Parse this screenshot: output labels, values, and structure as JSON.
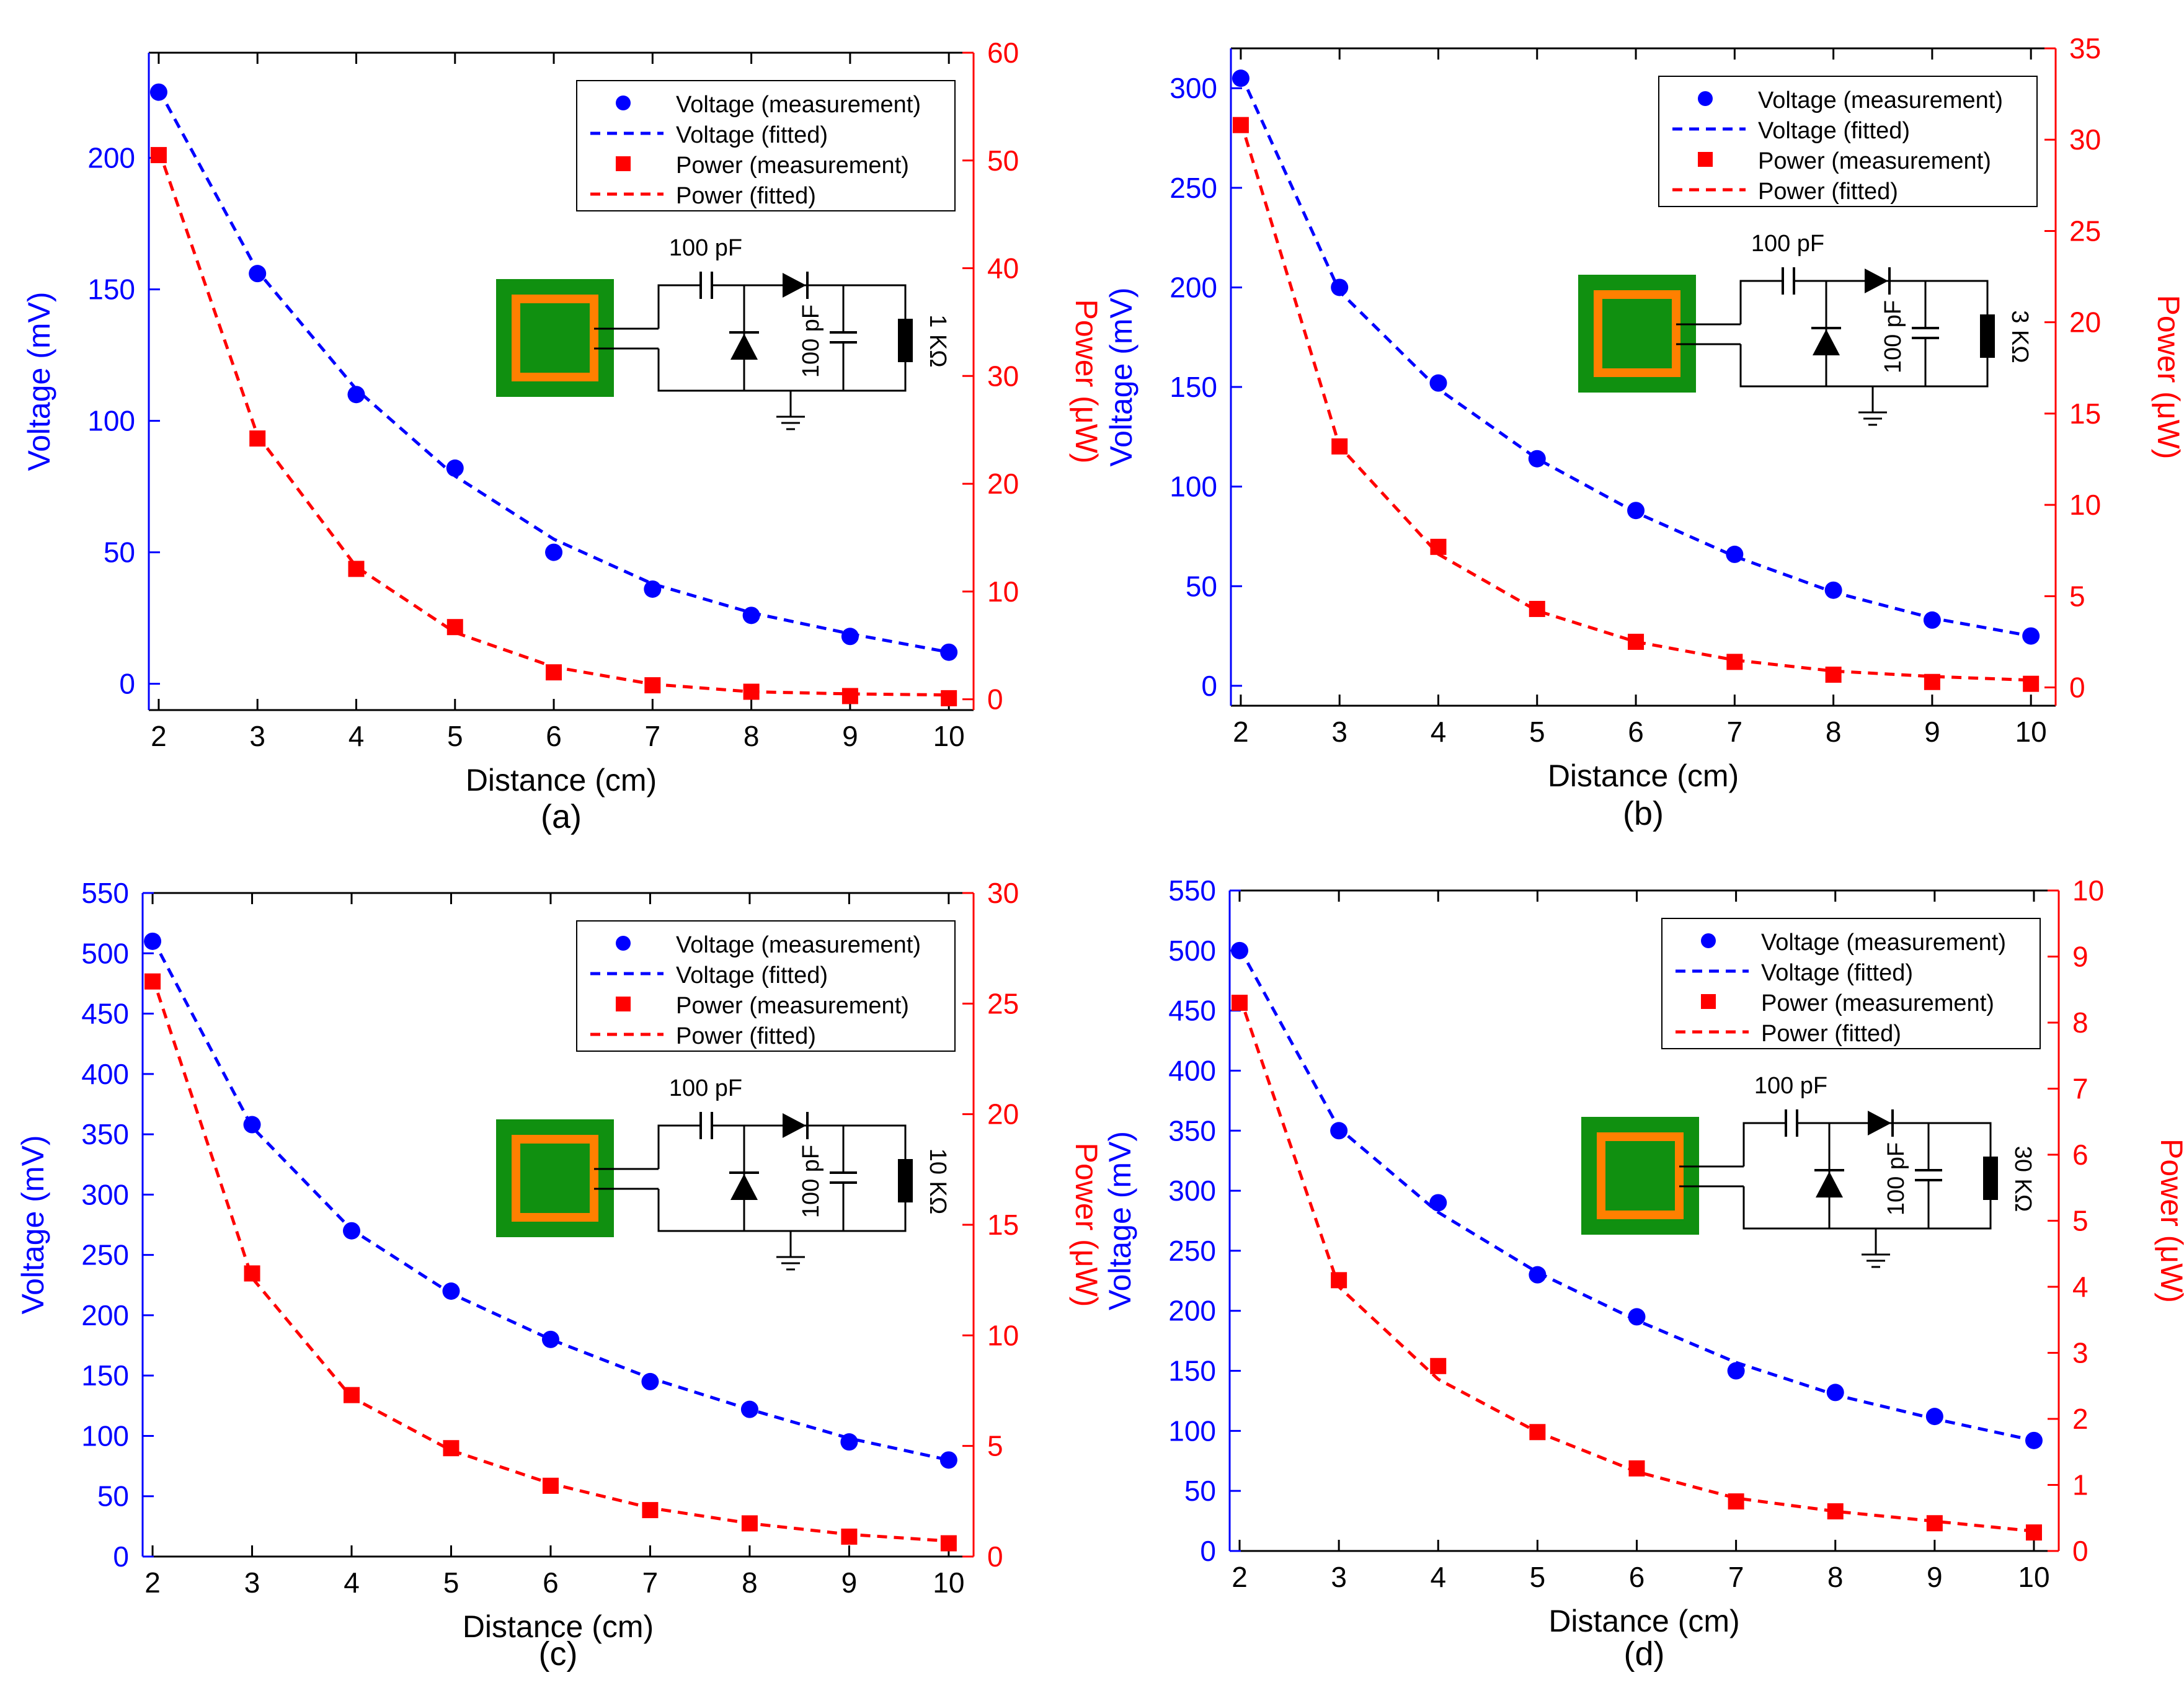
{
  "chart_data": [
    {
      "type": "line",
      "panel_label": "(a)",
      "xlabel": "Distance (cm)",
      "ylabel_left": "Voltage (mV)",
      "ylabel_right": "Power (μW)",
      "x": [
        2,
        3,
        4,
        5,
        6,
        7,
        8,
        9,
        10
      ],
      "xlim": [
        1.9,
        10.25
      ],
      "ylim_left": [
        -10,
        240
      ],
      "yticks_left": [
        0,
        50,
        100,
        150,
        200
      ],
      "ylim_right": [
        -1,
        60
      ],
      "yticks_right": [
        0,
        10,
        20,
        30,
        40,
        50,
        60
      ],
      "series": [
        {
          "name": "Voltage (measurement)",
          "kind": "scatter",
          "axis": "left",
          "color": "#0000ff",
          "values": [
            225,
            156,
            110,
            82,
            50,
            36,
            26,
            18,
            12
          ]
        },
        {
          "name": "Voltage (fitted)",
          "kind": "dashed",
          "axis": "left",
          "color": "#0000ff",
          "values": [
            226,
            157,
            112,
            79,
            55,
            38,
            27,
            19,
            12
          ]
        },
        {
          "name": "Power (measurement)",
          "kind": "scatter",
          "axis": "right",
          "color": "#ff0000",
          "values": [
            50.5,
            24.2,
            12.1,
            6.7,
            2.5,
            1.3,
            0.7,
            0.3,
            0.1
          ]
        },
        {
          "name": "Power (fitted)",
          "kind": "dashed",
          "axis": "right",
          "color": "#ff0000",
          "values": [
            51,
            24.5,
            12.3,
            6.2,
            3.0,
            1.4,
            0.7,
            0.5,
            0.4
          ]
        }
      ],
      "legend": [
        "Voltage (measurement)",
        "Voltage (fitted)",
        "Power (measurement)",
        "Power (fitted)"
      ],
      "circuit": {
        "capacitor_label": "100 pF",
        "shunt_capacitor_label": "100 pF",
        "resistor_label": "1 KΩ"
      }
    },
    {
      "type": "line",
      "panel_label": "(b)",
      "xlabel": "Distance (cm)",
      "ylabel_left": "Voltage (mV)",
      "ylabel_right": "Power (μW)",
      "x": [
        2,
        3,
        4,
        5,
        6,
        7,
        8,
        9,
        10
      ],
      "xlim": [
        1.9,
        10.25
      ],
      "ylim_left": [
        -10,
        320
      ],
      "yticks_left": [
        0,
        50,
        100,
        150,
        200,
        250,
        300
      ],
      "ylim_right": [
        -1,
        35
      ],
      "yticks_right": [
        0,
        5,
        10,
        15,
        20,
        25,
        30,
        35
      ],
      "series": [
        {
          "name": "Voltage (measurement)",
          "kind": "scatter",
          "axis": "left",
          "color": "#0000ff",
          "values": [
            305,
            200,
            152,
            114,
            88,
            66,
            48,
            33,
            25
          ]
        },
        {
          "name": "Voltage (fitted)",
          "kind": "dashed",
          "axis": "left",
          "color": "#0000ff",
          "values": [
            307,
            198,
            149,
            114,
            87,
            65,
            47,
            34,
            25
          ]
        },
        {
          "name": "Power (measurement)",
          "kind": "scatter",
          "axis": "right",
          "color": "#ff0000",
          "values": [
            30.8,
            13.2,
            7.7,
            4.3,
            2.5,
            1.4,
            0.7,
            0.3,
            0.2
          ]
        },
        {
          "name": "Power (fitted)",
          "kind": "dashed",
          "axis": "right",
          "color": "#ff0000",
          "values": [
            31,
            13.2,
            7.3,
            4.2,
            2.5,
            1.5,
            0.9,
            0.6,
            0.4
          ]
        }
      ],
      "legend": [
        "Voltage (measurement)",
        "Voltage (fitted)",
        "Power (measurement)",
        "Power (fitted)"
      ],
      "circuit": {
        "capacitor_label": "100 pF",
        "shunt_capacitor_label": "100 pF",
        "resistor_label": "3 KΩ"
      }
    },
    {
      "type": "line",
      "panel_label": "(c)",
      "xlabel": "Distance (cm)",
      "ylabel_left": "Voltage (mV)",
      "ylabel_right": "Power (μW)",
      "x": [
        2,
        3,
        4,
        5,
        6,
        7,
        8,
        9,
        10
      ],
      "xlim": [
        1.9,
        10.25
      ],
      "ylim_left": [
        0,
        550
      ],
      "yticks_left": [
        0,
        50,
        100,
        150,
        200,
        250,
        300,
        350,
        400,
        450,
        500,
        550
      ],
      "ylim_right": [
        0,
        30
      ],
      "yticks_right": [
        0,
        5,
        10,
        15,
        20,
        25,
        30
      ],
      "series": [
        {
          "name": "Voltage (measurement)",
          "kind": "scatter",
          "axis": "left",
          "color": "#0000ff",
          "values": [
            510,
            358,
            270,
            220,
            180,
            145,
            122,
            95,
            80
          ]
        },
        {
          "name": "Voltage (fitted)",
          "kind": "dashed",
          "axis": "left",
          "color": "#0000ff",
          "values": [
            512,
            356,
            271,
            218,
            180,
            148,
            122,
            98,
            80
          ]
        },
        {
          "name": "Power (measurement)",
          "kind": "scatter",
          "axis": "right",
          "color": "#ff0000",
          "values": [
            26,
            12.8,
            7.3,
            4.9,
            3.2,
            2.1,
            1.5,
            0.9,
            0.6
          ]
        },
        {
          "name": "Power (fitted)",
          "kind": "dashed",
          "axis": "right",
          "color": "#ff0000",
          "values": [
            26.2,
            12.6,
            7.2,
            4.8,
            3.3,
            2.2,
            1.5,
            1.0,
            0.7
          ]
        }
      ],
      "legend": [
        "Voltage (measurement)",
        "Voltage (fitted)",
        "Power (measurement)",
        "Power (fitted)"
      ],
      "circuit": {
        "capacitor_label": "100 pF",
        "shunt_capacitor_label": "100 pF",
        "resistor_label": "10 KΩ"
      }
    },
    {
      "type": "line",
      "panel_label": "(d)",
      "xlabel": "Distance (cm)",
      "ylabel_left": "Voltage (mV)",
      "ylabel_right": "Power (μW)",
      "x": [
        2,
        3,
        4,
        5,
        6,
        7,
        8,
        9,
        10
      ],
      "xlim": [
        1.9,
        10.25
      ],
      "ylim_left": [
        0,
        550
      ],
      "yticks_left": [
        0,
        50,
        100,
        150,
        200,
        250,
        300,
        350,
        400,
        450,
        500,
        550
      ],
      "ylim_right": [
        0,
        10
      ],
      "yticks_right": [
        0,
        1,
        2,
        3,
        4,
        5,
        6,
        7,
        8,
        9,
        10
      ],
      "series": [
        {
          "name": "Voltage (measurement)",
          "kind": "scatter",
          "axis": "left",
          "color": "#0000ff",
          "values": [
            500,
            350,
            290,
            230,
            195,
            150,
            132,
            112,
            92
          ]
        },
        {
          "name": "Voltage (fitted)",
          "kind": "dashed",
          "axis": "left",
          "color": "#0000ff",
          "values": [
            502,
            352,
            282,
            232,
            192,
            157,
            130,
            110,
            92
          ]
        },
        {
          "name": "Power (measurement)",
          "kind": "scatter",
          "axis": "right",
          "color": "#ff0000",
          "values": [
            8.3,
            4.1,
            2.8,
            1.8,
            1.25,
            0.75,
            0.6,
            0.42,
            0.28
          ]
        },
        {
          "name": "Power (fitted)",
          "kind": "dashed",
          "axis": "right",
          "color": "#ff0000",
          "values": [
            8.4,
            4.0,
            2.6,
            1.8,
            1.2,
            0.8,
            0.6,
            0.45,
            0.3
          ]
        }
      ],
      "legend": [
        "Voltage (measurement)",
        "Voltage (fitted)",
        "Power (measurement)",
        "Power (fitted)"
      ],
      "circuit": {
        "capacitor_label": "100 pF",
        "shunt_capacitor_label": "100 pF",
        "resistor_label": "30 KΩ"
      }
    }
  ]
}
